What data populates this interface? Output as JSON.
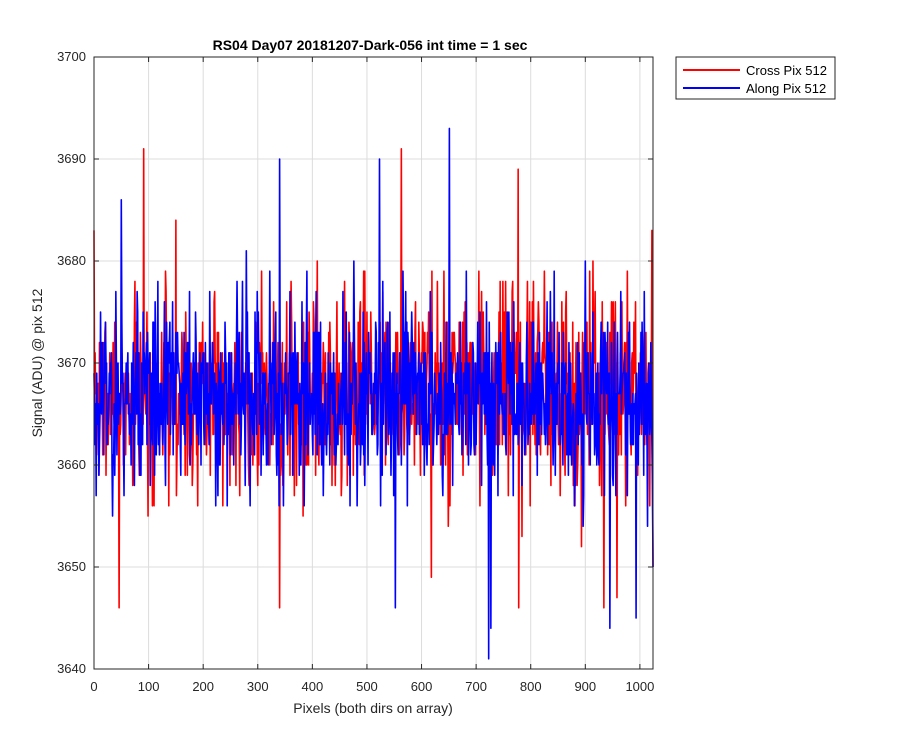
{
  "chart_data": {
    "type": "line",
    "title": "RS04 Day07 20181207-Dark-056 int time = 1 sec",
    "xlabel": "Pixels (both dirs on array)",
    "ylabel": "Signal (ADU) @ pix 512",
    "xlim": [
      0,
      1024
    ],
    "ylim": [
      3640,
      3700
    ],
    "xticks": [
      0,
      100,
      200,
      300,
      400,
      500,
      600,
      700,
      800,
      900,
      1000
    ],
    "yticks": [
      3640,
      3650,
      3660,
      3670,
      3680,
      3690,
      3700
    ],
    "grid": true,
    "legend_position": "outside-top-right",
    "series": [
      {
        "name": "Cross Pix 512",
        "color": "#ff0000",
        "generated": true,
        "n_points": 1024,
        "mean": 3667,
        "spread": 4.8,
        "min": 3646,
        "max": 3691,
        "seed": 7,
        "extremes": [
          {
            "x": 0,
            "y": 3683
          },
          {
            "x": 46,
            "y": 3646
          },
          {
            "x": 91,
            "y": 3691
          },
          {
            "x": 150,
            "y": 3684
          },
          {
            "x": 340,
            "y": 3646
          },
          {
            "x": 563,
            "y": 3691
          },
          {
            "x": 618,
            "y": 3649
          },
          {
            "x": 777,
            "y": 3689
          },
          {
            "x": 778,
            "y": 3646
          },
          {
            "x": 934,
            "y": 3646
          },
          {
            "x": 958,
            "y": 3647
          },
          {
            "x": 1022,
            "y": 3683
          },
          {
            "x": 1024,
            "y": 3650
          }
        ]
      },
      {
        "name": "Along Pix 512",
        "color": "#0000ff",
        "generated": true,
        "n_points": 1024,
        "mean": 3667,
        "spread": 4.8,
        "min": 3641,
        "max": 3693,
        "seed": 23,
        "extremes": [
          {
            "x": 4,
            "y": 3657
          },
          {
            "x": 50,
            "y": 3686
          },
          {
            "x": 340,
            "y": 3690
          },
          {
            "x": 523,
            "y": 3690
          },
          {
            "x": 552,
            "y": 3646
          },
          {
            "x": 651,
            "y": 3693
          },
          {
            "x": 723,
            "y": 3641
          },
          {
            "x": 727,
            "y": 3644
          },
          {
            "x": 945,
            "y": 3644
          },
          {
            "x": 993,
            "y": 3645
          },
          {
            "x": 1024,
            "y": 3650
          }
        ]
      }
    ]
  }
}
